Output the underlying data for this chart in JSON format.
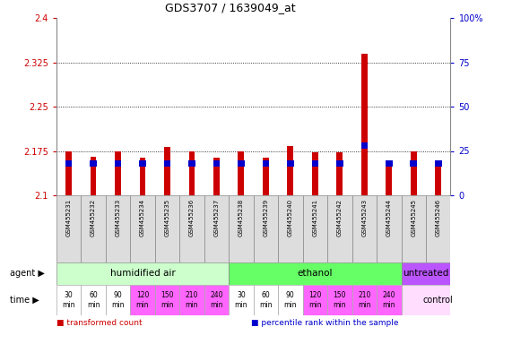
{
  "title": "GDS3707 / 1639049_at",
  "samples": [
    "GSM455231",
    "GSM455232",
    "GSM455233",
    "GSM455234",
    "GSM455235",
    "GSM455236",
    "GSM455237",
    "GSM455238",
    "GSM455239",
    "GSM455240",
    "GSM455241",
    "GSM455242",
    "GSM455243",
    "GSM455244",
    "GSM455245",
    "GSM455246"
  ],
  "transformed_count": [
    2.175,
    2.165,
    2.175,
    2.163,
    2.182,
    2.175,
    2.163,
    2.175,
    2.163,
    2.183,
    2.172,
    2.172,
    2.34,
    2.155,
    2.175,
    2.155
  ],
  "percentile_rank": [
    18,
    18,
    18,
    18,
    18,
    18,
    18,
    18,
    18,
    18,
    18,
    18,
    28,
    18,
    18,
    18
  ],
  "ymin": 2.1,
  "ymax": 2.4,
  "yticks": [
    2.1,
    2.175,
    2.25,
    2.325,
    2.4
  ],
  "ytick_labels": [
    "2.1",
    "2.175",
    "2.25",
    "2.325",
    "2.4"
  ],
  "y2min": 0,
  "y2max": 100,
  "y2ticks": [
    0,
    25,
    50,
    75,
    100
  ],
  "y2tick_labels": [
    "0",
    "25",
    "50",
    "75",
    "100%"
  ],
  "agent_groups": [
    {
      "label": "humidified air",
      "start": 0,
      "end": 7,
      "color": "#ccffcc"
    },
    {
      "label": "ethanol",
      "start": 7,
      "end": 14,
      "color": "#66ff66"
    },
    {
      "label": "untreated",
      "start": 14,
      "end": 16,
      "color": "#bb55ff"
    }
  ],
  "time_labels": [
    "30\nmin",
    "60\nmin",
    "90\nmin",
    "120\nmin",
    "150\nmin",
    "210\nmin",
    "240\nmin",
    "30\nmin",
    "60\nmin",
    "90\nmin",
    "120\nmin",
    "150\nmin",
    "210\nmin",
    "240\nmin"
  ],
  "time_colors": [
    "#ffffff",
    "#ffffff",
    "#ffffff",
    "#ff66ff",
    "#ff66ff",
    "#ff66ff",
    "#ff66ff",
    "#ffffff",
    "#ffffff",
    "#ffffff",
    "#ff66ff",
    "#ff66ff",
    "#ff66ff",
    "#ff66ff"
  ],
  "control_label": "control",
  "control_color": "#ffddff",
  "bar_width": 0.25,
  "red_color": "#cc0000",
  "blue_color": "#0000cc",
  "bg_color": "#ffffff",
  "grid_color": "#000000",
  "label_color_red": "#cc0000",
  "label_color_blue": "#0000cc",
  "sample_box_color": "#dddddd",
  "sample_box_edge": "#888888"
}
